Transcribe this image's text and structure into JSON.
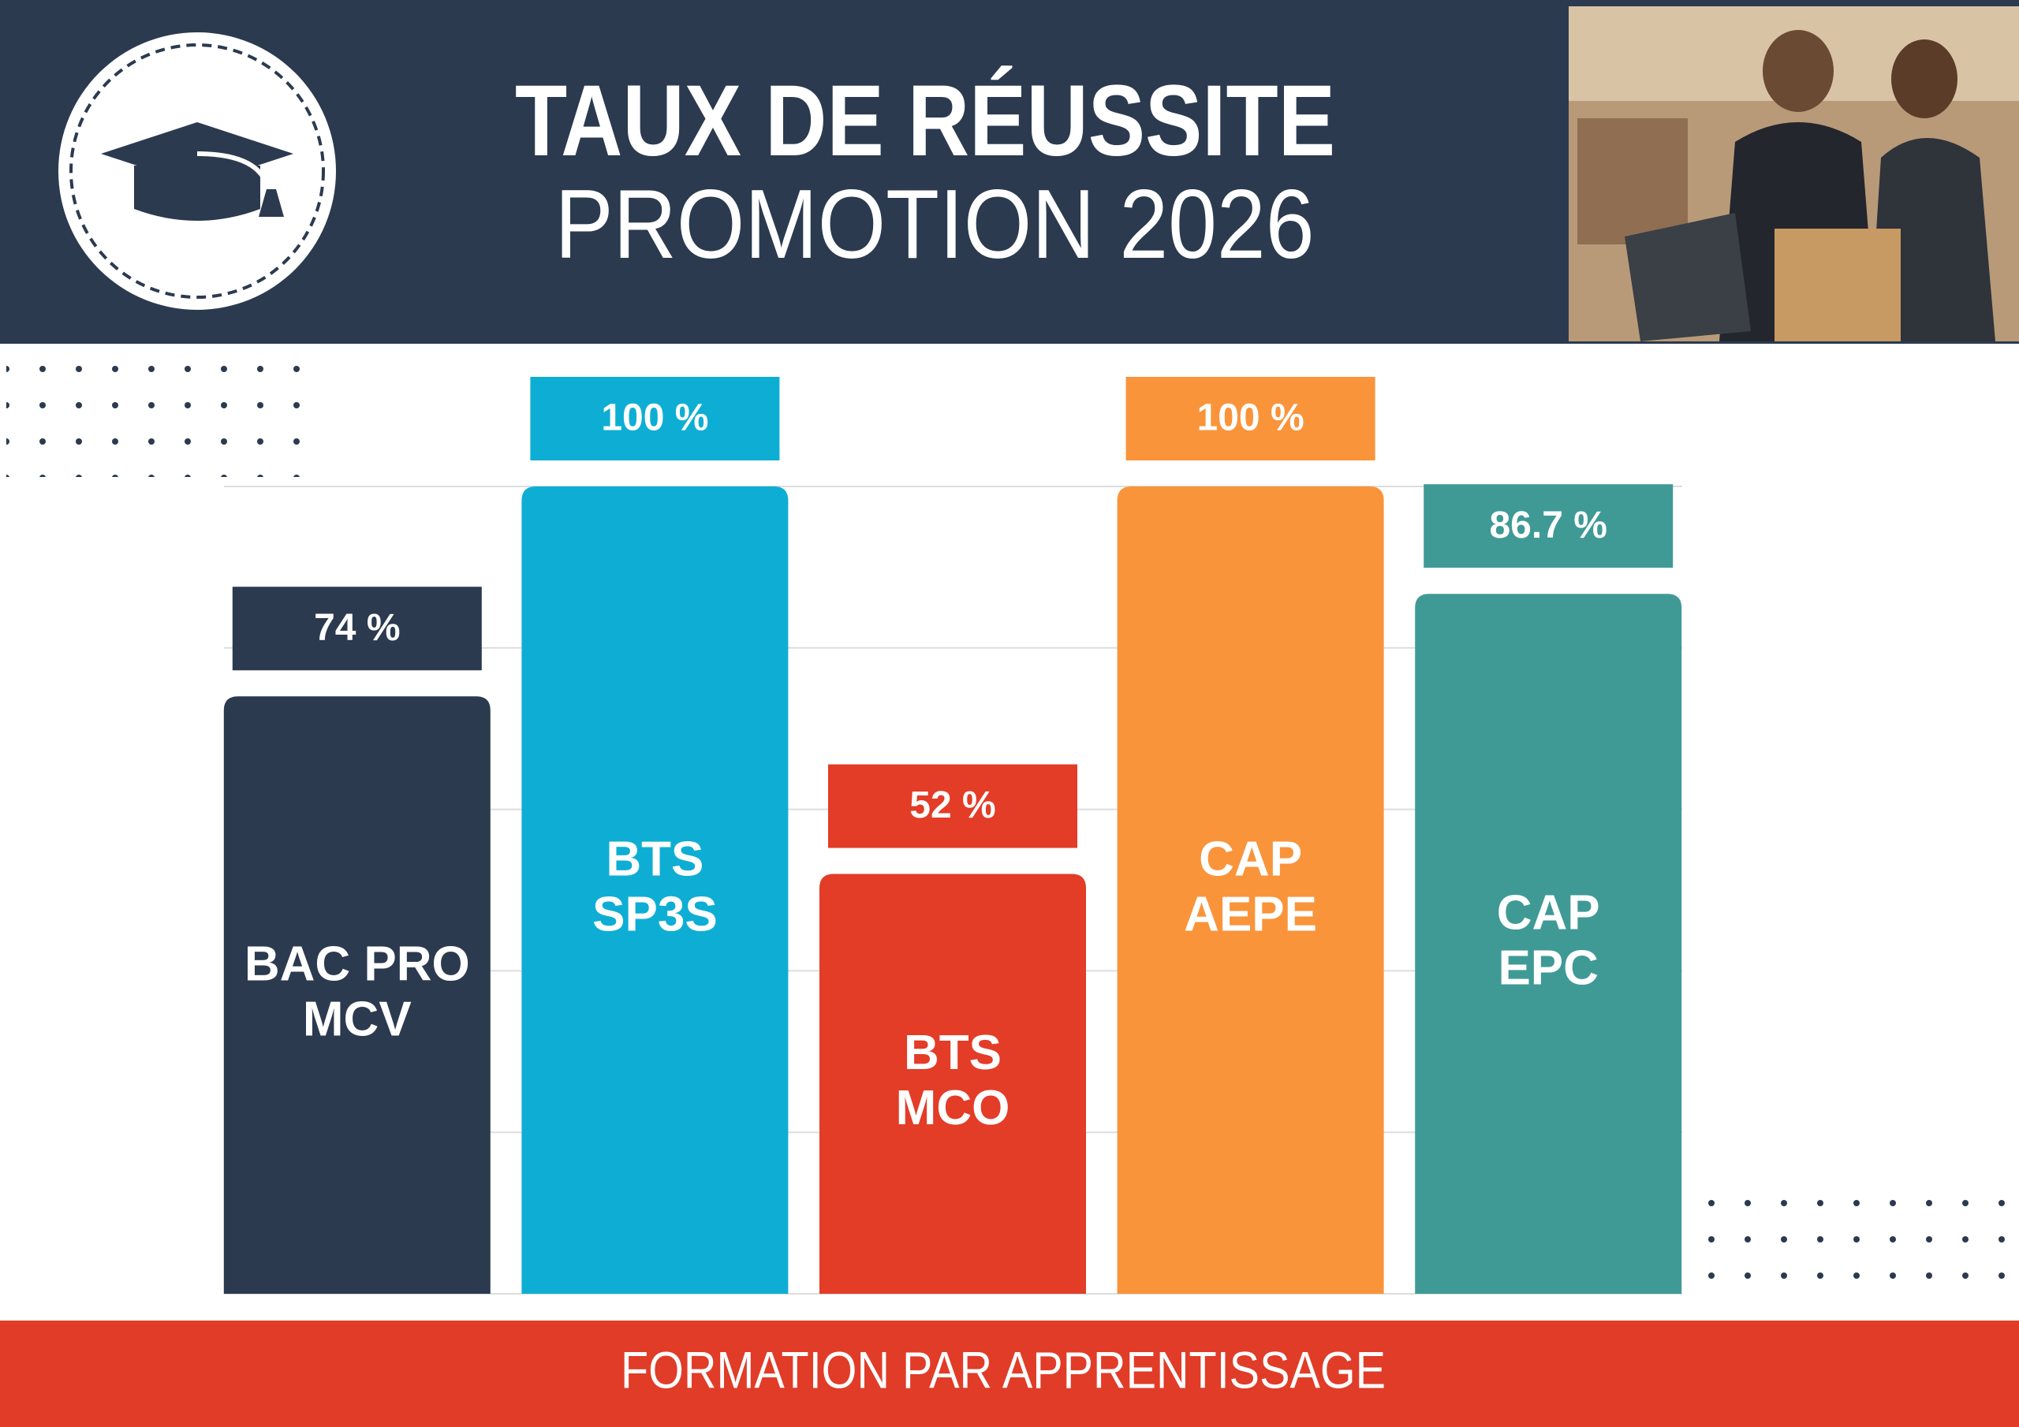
{
  "chart_data": {
    "type": "bar",
    "title": "TAUX DE RÉUSSITE",
    "subtitle": "PROMOTION 2026",
    "footer": "FORMATION PAR APPRENTISSAGE",
    "categories": [
      [
        "BAC PRO",
        "MCV"
      ],
      [
        "BTS",
        "SP3S"
      ],
      [
        "BTS",
        "MCO"
      ],
      [
        "CAP",
        "AEPE"
      ],
      [
        "CAP",
        "EPC"
      ]
    ],
    "values": [
      74,
      100,
      52,
      100,
      86.7
    ],
    "value_labels": [
      "74 %",
      "100 %",
      "52 %",
      "100 %",
      "86.7 %"
    ],
    "colors": [
      "#2b3a4f",
      "#0eaed4",
      "#e33c27",
      "#f9943b",
      "#3f9a96"
    ],
    "ylim": [
      0,
      100
    ],
    "yticks": [
      0,
      20,
      40,
      60,
      80,
      100
    ],
    "grid": true
  }
}
